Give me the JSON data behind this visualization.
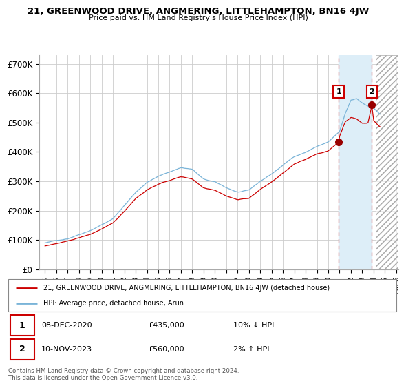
{
  "title": "21, GREENWOOD DRIVE, ANGMERING, LITTLEHAMPTON, BN16 4JW",
  "subtitle": "Price paid vs. HM Land Registry's House Price Index (HPI)",
  "legend_line1": "21, GREENWOOD DRIVE, ANGMERING, LITTLEHAMPTON, BN16 4JW (detached house)",
  "legend_line2": "HPI: Average price, detached house, Arun",
  "footnote": "Contains HM Land Registry data © Crown copyright and database right 2024.\nThis data is licensed under the Open Government Licence v3.0.",
  "annotation1_date": "08-DEC-2020",
  "annotation1_price": "£435,000",
  "annotation1_hpi": "10% ↓ HPI",
  "annotation2_date": "10-NOV-2023",
  "annotation2_price": "£560,000",
  "annotation2_hpi": "2% ↑ HPI",
  "sale1_x": 2020.92,
  "sale1_y": 435000,
  "sale2_x": 2023.85,
  "sale2_y": 560000,
  "hpi_color": "#7ab4d8",
  "price_color": "#cc0000",
  "shade_color": "#ddeef8",
  "hatch_color": "#cccccc",
  "sale_marker_color": "#990000",
  "vline_color": "#e08080",
  "annotation_box_color": "#cc0000",
  "grid_color": "#cccccc",
  "bg_color": "#ffffff",
  "ylim": [
    0,
    730000
  ],
  "xlim_start": 1994.5,
  "xlim_end": 2026.2,
  "yticks": [
    0,
    100000,
    200000,
    300000,
    400000,
    500000,
    600000,
    700000
  ],
  "ytick_labels": [
    "£0",
    "£100K",
    "£200K",
    "£300K",
    "£400K",
    "£500K",
    "£600K",
    "£700K"
  ],
  "xticks": [
    1995,
    1996,
    1997,
    1998,
    1999,
    2000,
    2001,
    2002,
    2003,
    2004,
    2005,
    2006,
    2007,
    2008,
    2009,
    2010,
    2011,
    2012,
    2013,
    2014,
    2015,
    2016,
    2017,
    2018,
    2019,
    2020,
    2021,
    2022,
    2023,
    2024,
    2025,
    2026
  ],
  "hatch_start": 2024.17,
  "hatch_end": 2026.2
}
